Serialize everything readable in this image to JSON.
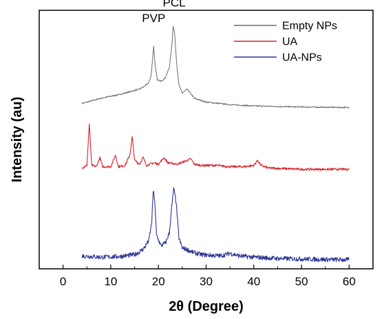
{
  "chart_data": {
    "type": "line",
    "title": "",
    "xlabel": "2θ (Degree)",
    "ylabel": "Intensity (au)",
    "xlim": [
      -5,
      65
    ],
    "xticks": [
      0,
      10,
      20,
      30,
      40,
      50,
      60
    ],
    "ylim": [
      0,
      100
    ],
    "grid": false,
    "legend_position": "top-right",
    "annotations": [
      {
        "text": "PVP",
        "x": 19,
        "y": 95.5
      },
      {
        "text": "PCL",
        "x": 23.3,
        "y": 101.5
      }
    ],
    "series": [
      {
        "name": "Empty NPs",
        "color": "#6b6b6b",
        "x": [
          4,
          8,
          12,
          14,
          16,
          17,
          18,
          18.5,
          18.8,
          19,
          19.3,
          19.8,
          20.5,
          21.5,
          22.3,
          22.8,
          23.1,
          23.4,
          23.8,
          24.3,
          25,
          26,
          26.5,
          27.5,
          30,
          35,
          40,
          45,
          50,
          55,
          60
        ],
        "y": [
          64,
          66,
          67.5,
          68.5,
          69.5,
          70.5,
          72,
          75,
          82,
          86,
          79,
          73,
          72.5,
          74,
          78,
          86,
          94,
          91,
          80,
          71,
          68,
          69.5,
          68.5,
          66,
          64.5,
          63.5,
          63,
          62.8,
          62.6,
          62.5,
          62.4
        ]
      },
      {
        "name": "UA",
        "color": "#d6212c",
        "x": [
          4,
          5,
          5.5,
          6,
          7,
          7.7,
          8.3,
          10,
          11,
          11.6,
          13,
          14,
          14.5,
          15,
          16,
          16.8,
          17.5,
          19,
          20,
          21.2,
          22,
          24,
          26.8,
          27.5,
          29,
          32,
          35,
          38,
          40,
          40.8,
          41.5,
          43,
          50,
          55,
          60
        ],
        "y": [
          39,
          40,
          56,
          40,
          39.5,
          43,
          39.5,
          39.5,
          44,
          39.5,
          40,
          44,
          51,
          42,
          40.5,
          43,
          40,
          41,
          40.5,
          43,
          41,
          40.5,
          42.5,
          40.5,
          40,
          40,
          39.5,
          39.5,
          40,
          42,
          40,
          39,
          38.5,
          38.5,
          38.5
        ]
      },
      {
        "name": "UA-NPs",
        "color": "#2b3595",
        "x": [
          4,
          8,
          12,
          15,
          16,
          17,
          18,
          18.6,
          18.9,
          19.2,
          19.6,
          20.5,
          21.5,
          22.3,
          22.8,
          23.2,
          23.7,
          24.3,
          25,
          26,
          27,
          29,
          33,
          35,
          37,
          40,
          45,
          50,
          55,
          60
        ],
        "y": [
          5,
          4.5,
          4.8,
          5.5,
          6.5,
          8,
          11,
          18,
          30,
          27,
          13,
          9,
          10,
          14,
          24,
          31,
          26,
          12,
          8,
          7.5,
          6.5,
          5.5,
          5,
          6,
          5,
          4.5,
          4,
          3.8,
          3.6,
          3.5
        ]
      }
    ]
  }
}
